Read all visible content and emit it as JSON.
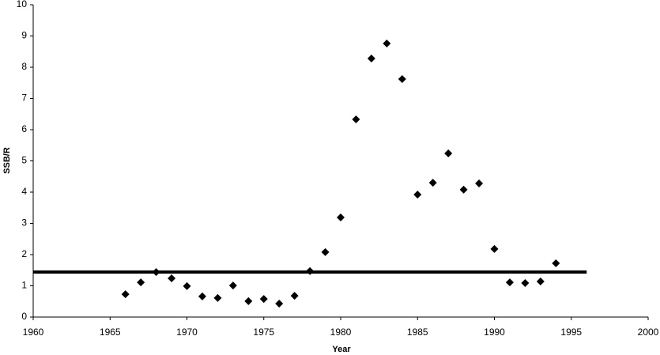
{
  "chart_data": {
    "type": "scatter",
    "x_label": "Year",
    "y_label": "SSB/R",
    "x": [
      1966,
      1967,
      1968,
      1969,
      1970,
      1971,
      1972,
      1973,
      1974,
      1975,
      1976,
      1977,
      1978,
      1979,
      1980,
      1981,
      1982,
      1983,
      1984,
      1985,
      1986,
      1987,
      1988,
      1989,
      1990,
      1991,
      1992,
      1993,
      1994
    ],
    "values": [
      0.73,
      1.11,
      1.44,
      1.24,
      0.99,
      0.66,
      0.61,
      1.01,
      0.51,
      0.58,
      0.43,
      0.68,
      1.47,
      2.08,
      3.19,
      6.33,
      8.28,
      8.76,
      7.62,
      3.92,
      4.3,
      5.24,
      4.08,
      4.28,
      2.18,
      1.11,
      1.09,
      1.14,
      1.72
    ],
    "color": "#000000",
    "reference_line": {
      "x": [
        1960,
        1996
      ],
      "y": [
        1.44,
        1.44
      ],
      "color": "#000000"
    },
    "xlim": [
      1960,
      2000
    ],
    "xticks": [
      1960,
      1965,
      1970,
      1975,
      1980,
      1985,
      1990,
      1995,
      2000
    ],
    "ylim": [
      0,
      10
    ],
    "yticks": [
      0,
      1,
      2,
      3,
      4,
      5,
      6,
      7,
      8,
      9,
      10
    ],
    "grid": false
  }
}
